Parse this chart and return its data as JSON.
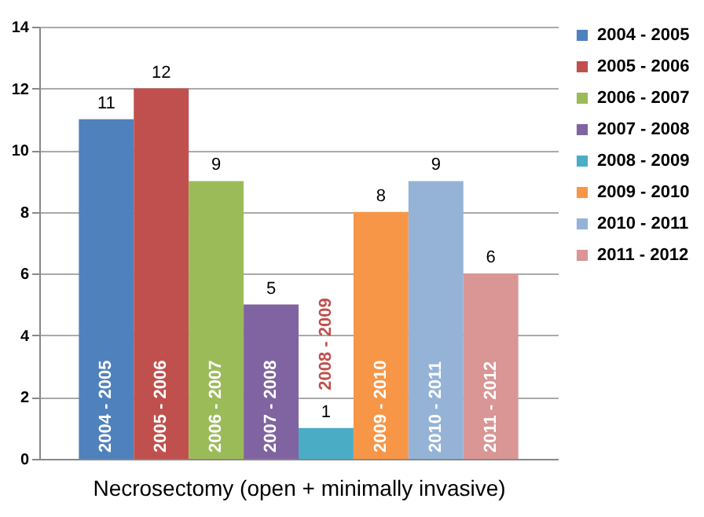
{
  "chart_data": {
    "type": "bar",
    "xlabel": "Necrosectomy (open + minimally invasive)",
    "categories": [
      null
    ],
    "series": [
      {
        "name": "2004 - 2005",
        "color": "#4f81bd",
        "values": [
          11
        ]
      },
      {
        "name": "2005 - 2006",
        "color": "#c0504d",
        "values": [
          12
        ]
      },
      {
        "name": "2006 - 2007",
        "color": "#9bbb59",
        "values": [
          9
        ]
      },
      {
        "name": "2007 - 2008",
        "color": "#8064a2",
        "values": [
          5
        ]
      },
      {
        "name": "2008 - 2009",
        "color": "#4bacc6",
        "values": [
          1
        ]
      },
      {
        "name": "2009 - 2010",
        "color": "#f79646",
        "values": [
          8
        ]
      },
      {
        "name": "2010 - 2011",
        "color": "#95b3d7",
        "values": [
          9
        ]
      },
      {
        "name": "2011 - 2012",
        "color": "#d99694",
        "values": [
          6
        ]
      }
    ],
    "ylim": [
      0,
      14
    ],
    "yticks": [
      0,
      2,
      4,
      6,
      8,
      10,
      12,
      14
    ],
    "grid": "y",
    "legend": "right",
    "data_labels": true
  }
}
